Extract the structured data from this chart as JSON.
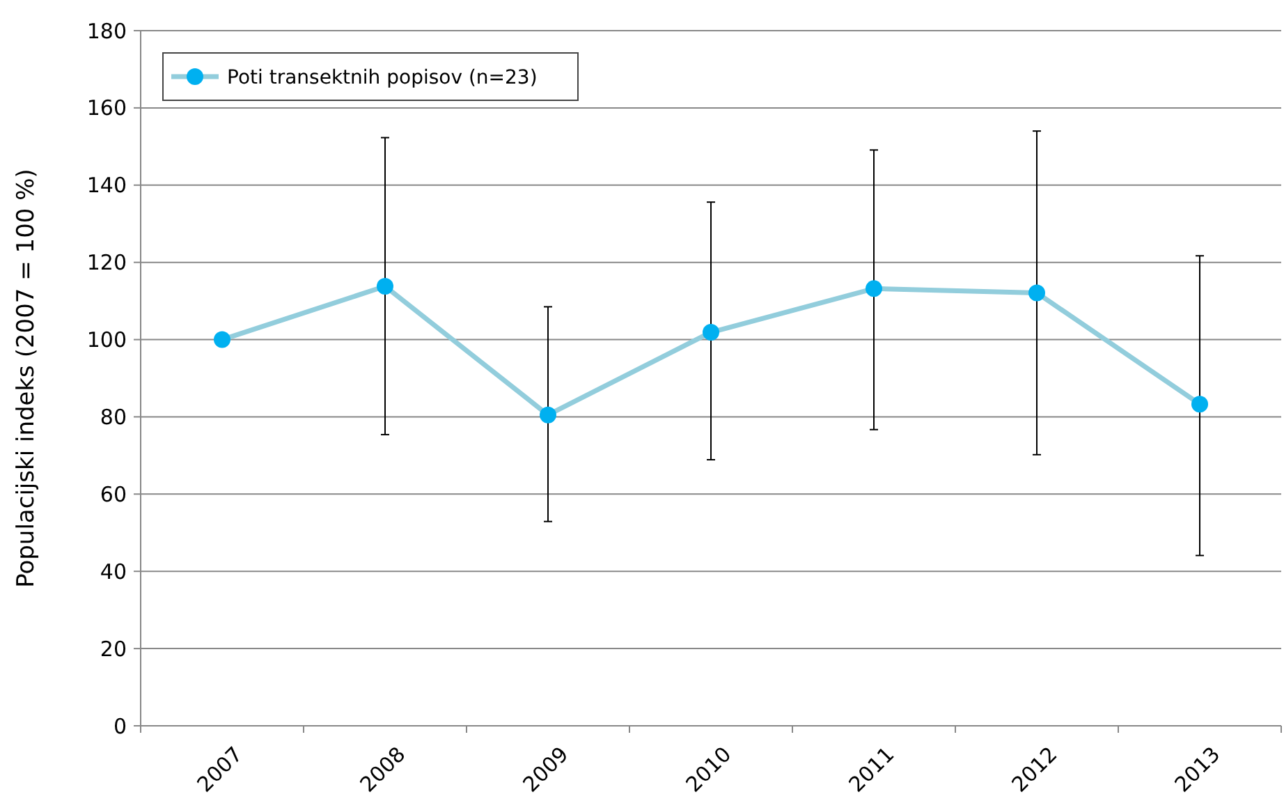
{
  "chart_data": {
    "type": "line",
    "ylabel": "Populacijski indeks (2007 = 100 %)",
    "categories": [
      "2007",
      "2008",
      "2009",
      "2010",
      "2011",
      "2012",
      "2013"
    ],
    "series": [
      {
        "name": "Poti transektnih popisov (n=23)",
        "color": "#92cddc",
        "colors": [
          "#00b0f0",
          "#00b0f0",
          "#00b0f0",
          "#00b0f0",
          "#00b0f0",
          "#00b0f0",
          "#00b0f0"
        ],
        "values": [
          100,
          113.8,
          80.5,
          101.9,
          113.2,
          112.1,
          83.3
        ],
        "errors": [
          null,
          [
            75.4,
            152.3
          ],
          [
            52.9,
            108.5
          ],
          [
            68.9,
            135.6
          ],
          [
            76.7,
            149.1
          ],
          [
            70.2,
            154
          ],
          [
            44.1,
            121.7
          ]
        ]
      }
    ],
    "ylim": [
      0,
      180
    ],
    "yticks": [
      0,
      20,
      40,
      60,
      80,
      100,
      120,
      140,
      160,
      180
    ],
    "grid": "y",
    "legend": "top left",
    "marker": "circle",
    "line_style": "solid"
  }
}
